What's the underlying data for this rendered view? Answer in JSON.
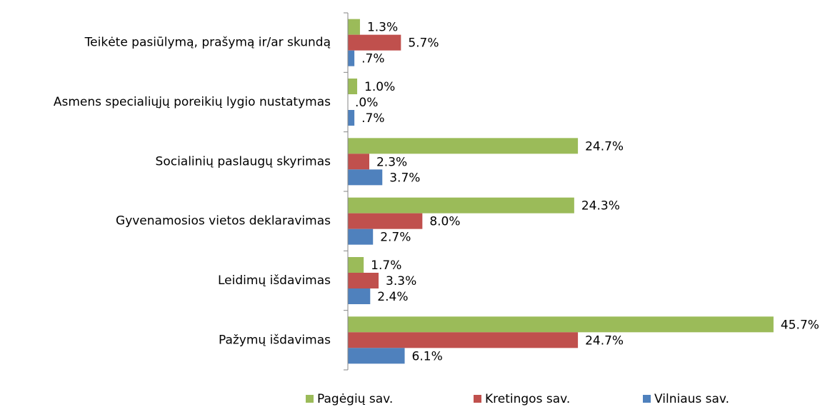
{
  "chart_data": {
    "type": "hbar",
    "categories": [
      "Teikėte pasiūlymą, prašymą ir/ar skundą",
      "Asmens specialiųjų poreikių lygio nustatymas",
      "Socialinių paslaugų skyrimas",
      "Gyvenamosios vietos deklaravimas",
      "Leidimų išdavimas",
      "Pažymų išdavimas"
    ],
    "series": [
      {
        "name": "Pagėgių sav.",
        "color": "#9bbb59",
        "values": [
          1.3,
          1.0,
          24.7,
          24.3,
          1.7,
          45.7
        ],
        "value_labels": [
          "1.3%",
          "1.0%",
          "24.7%",
          "24.3%",
          "1.7%",
          "45.7%"
        ]
      },
      {
        "name": "Kretingos sav.",
        "color": "#c0504d",
        "values": [
          5.7,
          0.0,
          2.3,
          8.0,
          3.3,
          24.7
        ],
        "value_labels": [
          "5.7%",
          ".0%",
          "2.3%",
          "8.0%",
          "3.3%",
          "24.7%"
        ]
      },
      {
        "name": "Vilniaus sav.",
        "color": "#4f81bd",
        "values": [
          0.7,
          0.7,
          3.7,
          2.7,
          2.4,
          6.1
        ],
        "value_labels": [
          ".7%",
          ".7%",
          "3.7%",
          "2.7%",
          "2.4%",
          "6.1%"
        ]
      }
    ],
    "xlim": [
      0,
      50
    ],
    "legend": "bottom"
  }
}
